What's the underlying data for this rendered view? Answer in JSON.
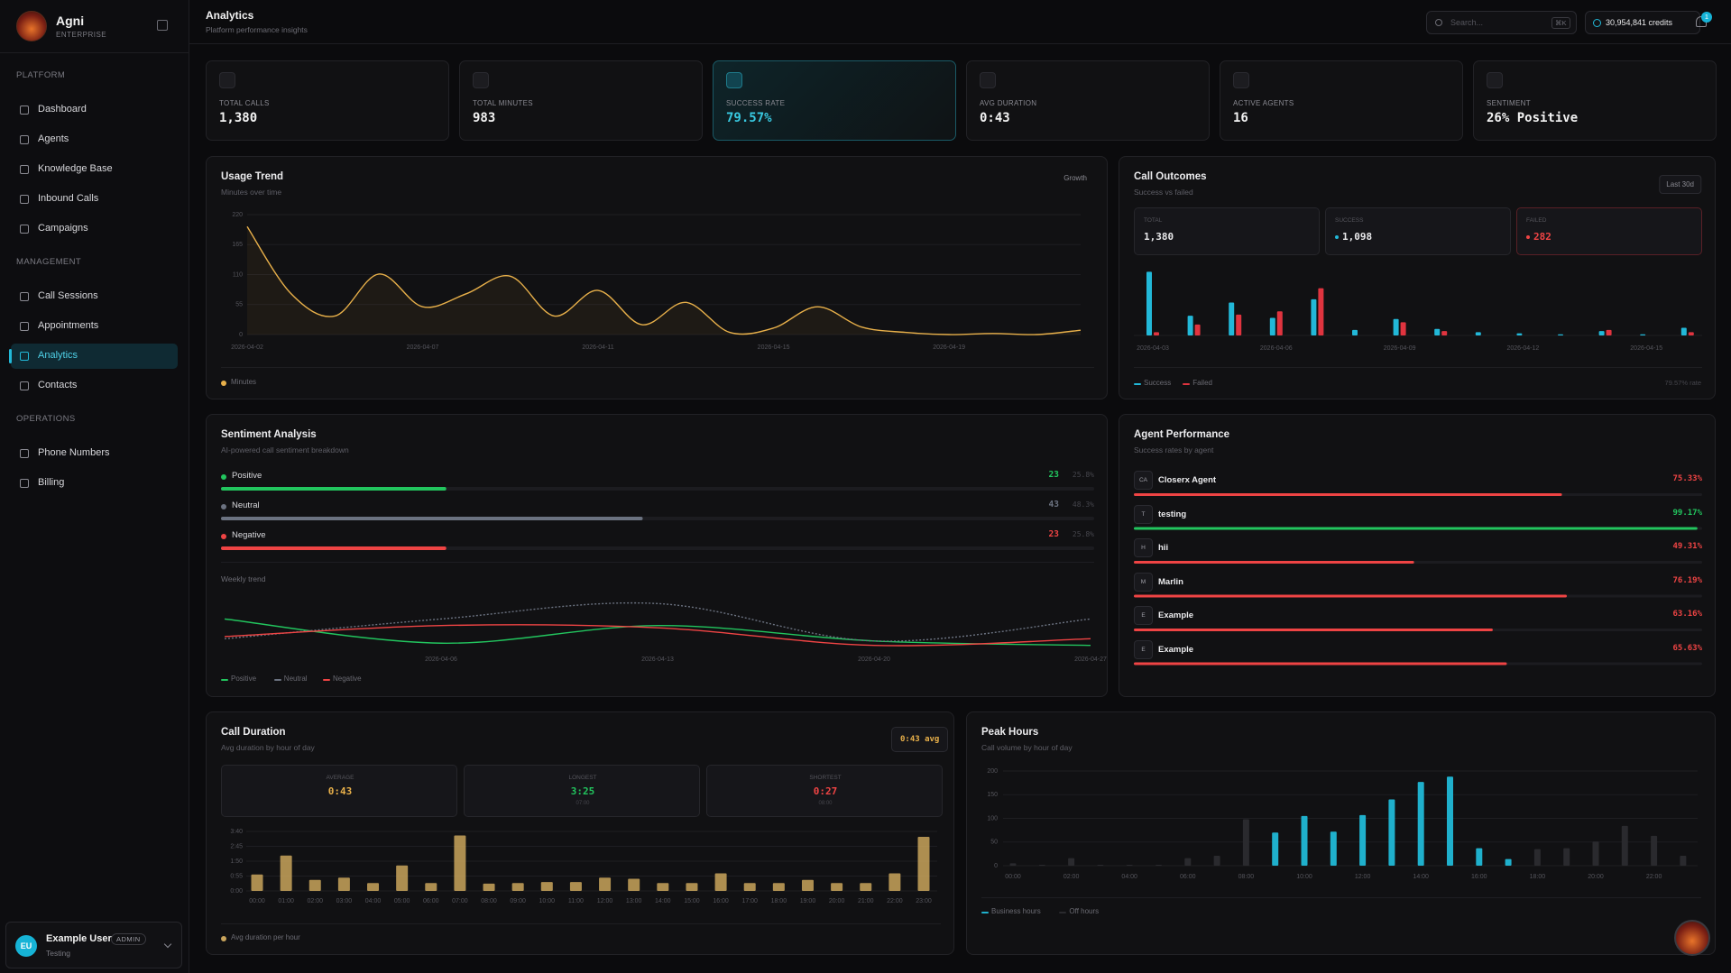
{
  "sidebar": {
    "brand": "Agni",
    "plan": "ENTERPRISE",
    "sections": [
      {
        "title": "PLATFORM",
        "items": [
          "Dashboard",
          "Agents",
          "Knowledge Base",
          "Inbound Calls",
          "Campaigns"
        ]
      },
      {
        "title": "MANAGEMENT",
        "items": [
          "Call Sessions",
          "Appointments",
          "Analytics",
          "Contacts"
        ]
      },
      {
        "title": "OPERATIONS",
        "items": [
          "Phone Numbers",
          "Billing"
        ]
      }
    ],
    "active": "Analytics",
    "user": {
      "initials": "EU",
      "name": "Example User",
      "role": "ADMIN",
      "org": "Testing"
    }
  },
  "header": {
    "title": "Analytics",
    "subtitle": "Platform performance insights",
    "search_placeholder": "Search...",
    "shortcut": "⌘K",
    "credits": "30,954,841 credits",
    "notifications": 1
  },
  "stats": [
    {
      "label": "TOTAL CALLS",
      "value": "1,380"
    },
    {
      "label": "TOTAL MINUTES",
      "value": "983"
    },
    {
      "label": "SUCCESS RATE",
      "value": "79.57%",
      "highlight": true
    },
    {
      "label": "AVG DURATION",
      "value": "0:43"
    },
    {
      "label": "ACTIVE AGENTS",
      "value": "16"
    },
    {
      "label": "SENTIMENT",
      "value": "26% Positive"
    }
  ],
  "chart_data": [
    {
      "type": "line",
      "title": "Usage Trend",
      "subtitle": "Minutes over time",
      "button": "Growth",
      "categories": [
        "2026-04-02",
        null,
        null,
        null,
        "2026-04-07",
        null,
        null,
        null,
        "2026-04-11",
        null,
        null,
        null,
        "2026-04-15",
        null,
        null,
        null,
        "2026-04-19",
        null,
        null,
        null
      ],
      "series": [
        {
          "name": "Minutes",
          "color": "#e8b04a",
          "values": [
            198,
            75,
            34,
            111,
            51,
            75,
            107,
            34,
            81,
            18,
            59,
            4,
            12,
            51,
            14,
            4,
            0,
            2,
            0,
            8
          ]
        }
      ],
      "ylim": [
        0,
        220
      ],
      "yticks": [
        0,
        55,
        110,
        165,
        220
      ],
      "grid": true
    },
    {
      "type": "bar",
      "title": "Call Outcomes",
      "subtitle": "Success vs failed",
      "button": "Last 30d",
      "stats": [
        {
          "label": "TOTAL",
          "value": "1,380",
          "color": "#e8e8ea"
        },
        {
          "label": "SUCCESS",
          "value": "1,098",
          "color": "#e8e8ea",
          "dot": "#22b8d8"
        },
        {
          "label": "FAILED",
          "value": "282",
          "color": "#ef4444",
          "dot": "#ef4444"
        }
      ],
      "categories": [
        "2026-04-03",
        null,
        null,
        "2026-04-06",
        null,
        null,
        "2026-04-09",
        null,
        null,
        "2026-04-12",
        null,
        null,
        "2026-04-15",
        null
      ],
      "series": [
        {
          "name": "Success",
          "color": "#22b8d8",
          "values": [
            58,
            18,
            30,
            16,
            33,
            5,
            15,
            6,
            3,
            2,
            1,
            4,
            1,
            7
          ]
        },
        {
          "name": "Failed",
          "color": "#e0343f",
          "values": [
            3,
            10,
            19,
            22,
            43,
            0,
            12,
            4,
            0,
            0,
            0,
            5,
            0,
            3
          ]
        }
      ],
      "ylim": [
        0,
        60
      ],
      "footer": "79.57% rate"
    },
    {
      "type": "line",
      "title": "Sentiment Analysis",
      "subtitle": "AI-powered call sentiment breakdown",
      "breakdown": {
        "categories": [
          "Positive",
          "Neutral",
          "Negative"
        ],
        "colors": [
          "#22c55e",
          "#6b7280",
          "#ef4444"
        ],
        "values": [
          23,
          43,
          23
        ],
        "percents": [
          25.8,
          48.3,
          25.8
        ],
        "percent_labels": [
          "25.8%",
          "48.3%",
          "25.8%"
        ],
        "xlim": [
          0,
          100
        ]
      },
      "trend_title": "Weekly trend",
      "categories": [
        null,
        "2026-04-06",
        "2026-04-13",
        "2026-04-20",
        "2026-04-27"
      ],
      "series": [
        {
          "name": "Positive",
          "color": "#22c55e",
          "values": [
            15,
            4,
            12,
            5,
            3
          ]
        },
        {
          "name": "Neutral",
          "color": "#6b7280",
          "dashed": true,
          "values": [
            6,
            15,
            22,
            5,
            15
          ]
        },
        {
          "name": "Negative",
          "color": "#ef4444",
          "values": [
            7,
            12,
            11,
            3,
            6
          ]
        }
      ],
      "ylim": [
        0,
        25
      ]
    },
    {
      "type": "hbar",
      "title": "Agent Performance",
      "subtitle": "Success rates by agent",
      "initials": [
        "CA",
        "T",
        "H",
        "M",
        "E",
        "E"
      ],
      "categories": [
        "Closerx Agent",
        "testing",
        "hii",
        "Marlin",
        "Example",
        "Example"
      ],
      "values": [
        75.33,
        99.17,
        49.31,
        76.19,
        63.16,
        65.63
      ],
      "value_labels": [
        "75.33%",
        "99.17%",
        "49.31%",
        "76.19%",
        "63.16%",
        "65.63%"
      ],
      "colors": [
        "#ef4444",
        "#22c55e",
        "#ef4444",
        "#ef4444",
        "#ef4444",
        "#ef4444"
      ],
      "xlim": [
        0,
        100
      ]
    },
    {
      "type": "bar",
      "title": "Call Duration",
      "subtitle": "Avg duration by hour of day",
      "badge": "0:43 avg",
      "stats": [
        {
          "label": "AVERAGE",
          "value": "0:43",
          "color": "#e8b04a"
        },
        {
          "label": "LONGEST",
          "value": "3:25",
          "color": "#22c55e",
          "note": "07:00"
        },
        {
          "label": "SHORTEST",
          "value": "0:27",
          "color": "#ef4444",
          "note": "08:00"
        }
      ],
      "categories": [
        "00:00",
        "01:00",
        "02:00",
        "03:00",
        "04:00",
        "05:00",
        "06:00",
        "07:00",
        "08:00",
        "09:00",
        "10:00",
        "11:00",
        "12:00",
        "13:00",
        "14:00",
        "15:00",
        "16:00",
        "17:00",
        "18:00",
        "19:00",
        "20:00",
        "21:00",
        "22:00",
        "23:00"
      ],
      "series": [
        {
          "name": "Avg duration per hour",
          "color": "#c9a45c",
          "values": [
            61,
            131,
            41,
            49,
            29,
            94,
            29,
            205,
            27,
            29,
            33,
            33,
            49,
            45,
            29,
            29,
            65,
            29,
            29,
            41,
            29,
            29,
            65,
            200
          ]
        }
      ],
      "ylim": [
        0,
        220
      ],
      "yticks": [
        {
          "value": 0,
          "label": "0:00"
        },
        {
          "value": 55,
          "label": "0:55"
        },
        {
          "value": 110,
          "label": "1:50"
        },
        {
          "value": 165,
          "label": "2:45"
        },
        {
          "value": 220,
          "label": "3:40"
        }
      ],
      "grid": true
    },
    {
      "type": "bar",
      "title": "Peak Hours",
      "subtitle": "Call volume by hour of day",
      "categories": [
        "00:00",
        null,
        "02:00",
        null,
        "04:00",
        null,
        "06:00",
        null,
        "08:00",
        null,
        "10:00",
        null,
        "12:00",
        null,
        "14:00",
        null,
        "16:00",
        null,
        "18:00",
        null,
        "20:00",
        null,
        "22:00",
        null
      ],
      "series": [
        {
          "name": "Business hours",
          "color": "#1fb0cc",
          "values": [
            null,
            null,
            null,
            null,
            null,
            null,
            null,
            null,
            null,
            70,
            105,
            72,
            107,
            140,
            177,
            188,
            37,
            14,
            null,
            null,
            null,
            null,
            null,
            null
          ]
        },
        {
          "name": "Off hours",
          "color": "#2a2a2e",
          "values": [
            5,
            2,
            16,
            2,
            2,
            2,
            16,
            21,
            98,
            null,
            null,
            null,
            null,
            null,
            null,
            null,
            null,
            null,
            35,
            37,
            51,
            84,
            63,
            21
          ]
        }
      ],
      "ylim": [
        0,
        200
      ],
      "yticks": [
        0,
        50,
        100,
        150,
        200
      ],
      "grid": true
    }
  ]
}
